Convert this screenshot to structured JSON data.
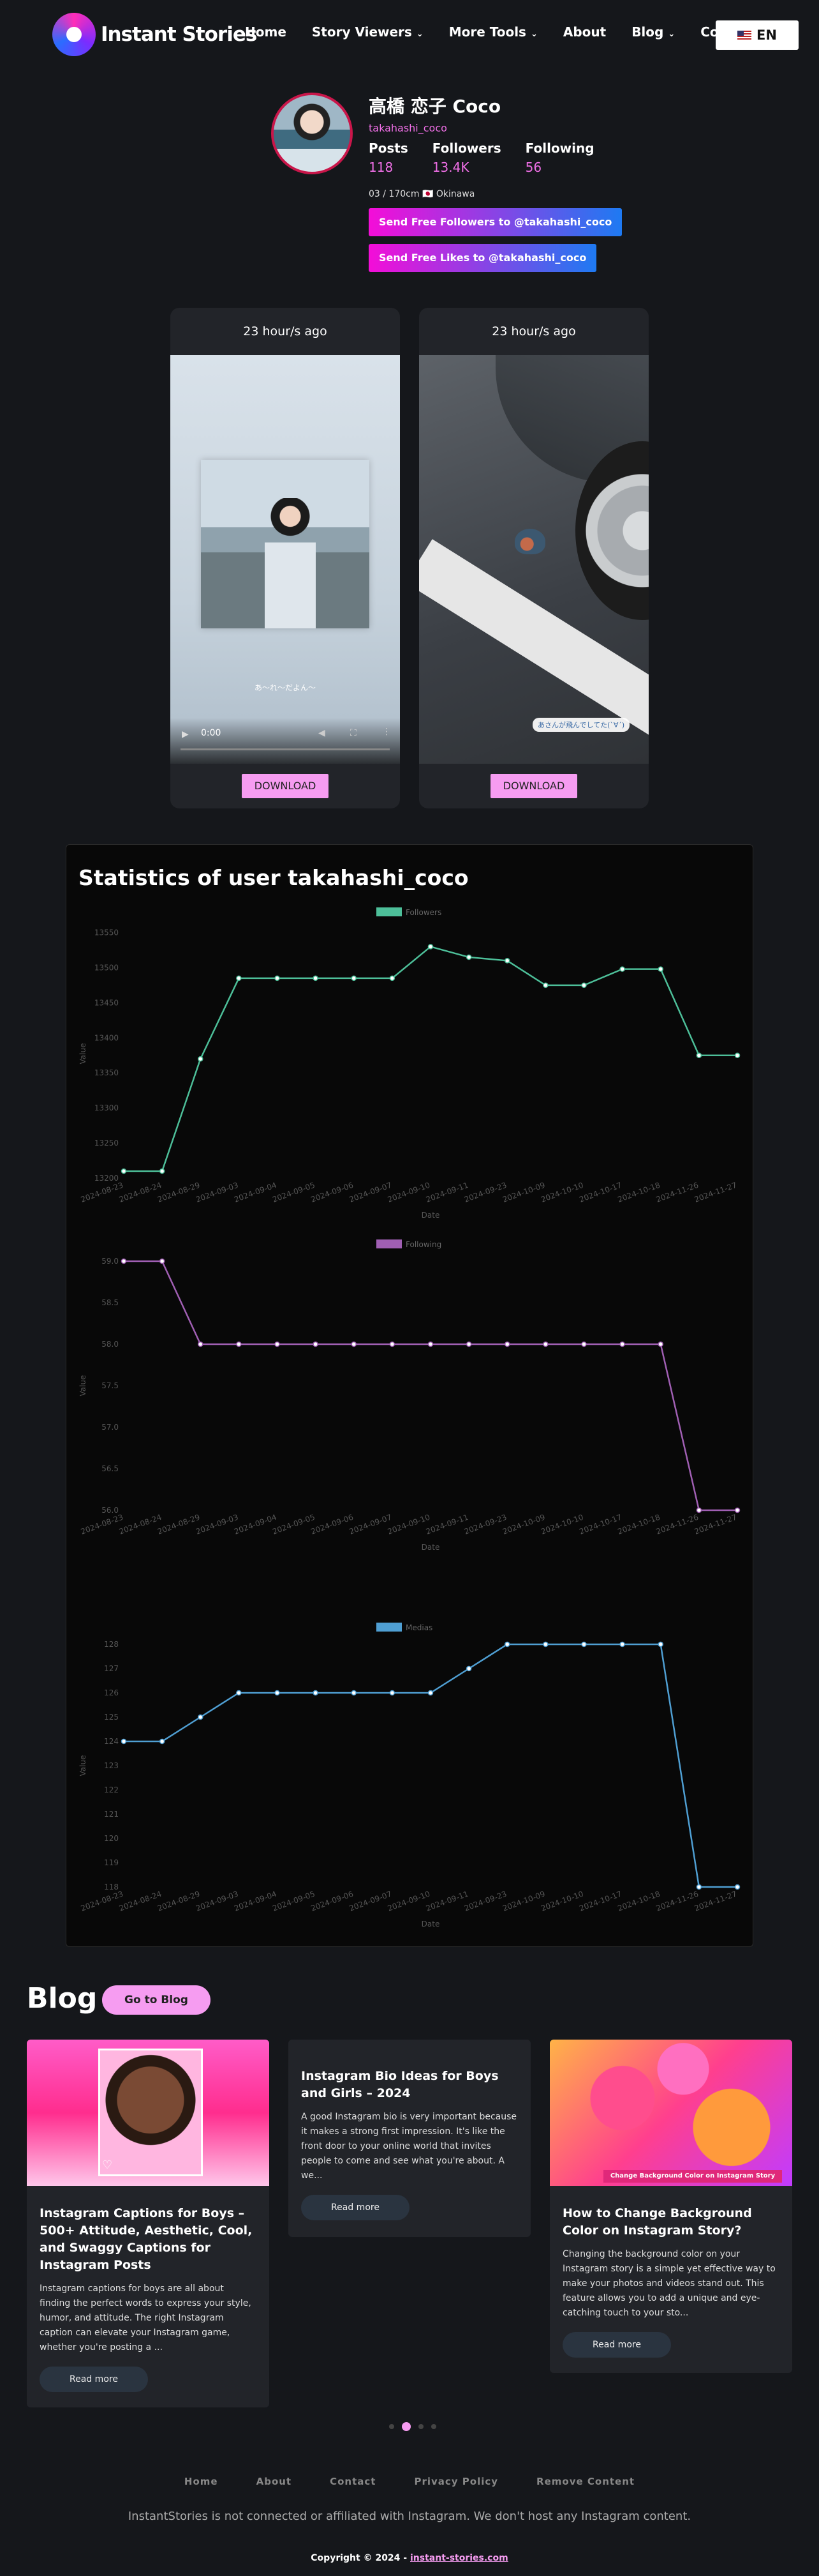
{
  "nav": {
    "brand": "Instant Stories",
    "items": [
      {
        "label": "Home"
      },
      {
        "label": "Story Viewers",
        "dropdown": true
      },
      {
        "label": "More Tools",
        "dropdown": true
      },
      {
        "label": "About"
      },
      {
        "label": "Blog",
        "dropdown": true
      },
      {
        "label": "Co"
      }
    ],
    "lang": "EN"
  },
  "profile": {
    "name": "高橋 恋子 Coco",
    "username": "takahashi_coco",
    "posts_label": "Posts",
    "posts": "118",
    "followers_label": "Followers",
    "followers": "13.4K",
    "following_label": "Following",
    "following": "56",
    "bio": "03 / 170cm 🇯🇵 Okinawa",
    "btn_followers": "Send Free Followers to @takahashi_coco",
    "btn_likes": "Send Free Likes to @takahashi_coco"
  },
  "stories": [
    {
      "time": "23 hour/s ago",
      "type": "video",
      "current_time": "0:00",
      "caption": "あ～れ〜だよん～",
      "download": "DOWNLOAD"
    },
    {
      "time": "23 hour/s ago",
      "type": "image",
      "caption": "あさんが飛んでしてた(`∀´)",
      "download": "DOWNLOAD"
    }
  ],
  "statistics": {
    "title": "Statistics of user takahashi_coco"
  },
  "chart_data": [
    {
      "type": "line",
      "series": [
        {
          "name": "Followers",
          "color": "#4dbf99"
        }
      ],
      "x": [
        "2024-08-23",
        "2024-08-24",
        "2024-08-29",
        "2024-09-03",
        "2024-09-04",
        "2024-09-05",
        "2024-09-06",
        "2024-09-07",
        "2024-09-10",
        "2024-09-11",
        "2024-09-23",
        "2024-10-09",
        "2024-10-10",
        "2024-10-17",
        "2024-10-18",
        "2024-11-26",
        "2024-11-27"
      ],
      "values": [
        13210,
        13210,
        13370,
        13485,
        13485,
        13485,
        13485,
        13485,
        13530,
        13515,
        13510,
        13475,
        13475,
        13498,
        13498,
        13375,
        13375
      ],
      "xlabel": "Date",
      "ylabel": "Value",
      "yticks": [
        13200,
        13250,
        13300,
        13350,
        13400,
        13450,
        13500,
        13550
      ],
      "ylim": [
        13200,
        13555
      ]
    },
    {
      "type": "line",
      "series": [
        {
          "name": "Following",
          "color": "#a05fb3"
        }
      ],
      "x": [
        "2024-08-23",
        "2024-08-24",
        "2024-08-29",
        "2024-09-03",
        "2024-09-04",
        "2024-09-05",
        "2024-09-06",
        "2024-09-07",
        "2024-09-10",
        "2024-09-11",
        "2024-09-23",
        "2024-10-09",
        "2024-10-10",
        "2024-10-17",
        "2024-10-18",
        "2024-11-26",
        "2024-11-27"
      ],
      "values": [
        59,
        59,
        58,
        58,
        58,
        58,
        58,
        58,
        58,
        58,
        58,
        58,
        58,
        58,
        58,
        56,
        56
      ],
      "xlabel": "Date",
      "ylabel": "Value",
      "yticks": [
        "56.0",
        "56.5",
        "57.0",
        "57.5",
        "58.0",
        "58.5",
        "59.0"
      ],
      "ylim": [
        56,
        59
      ]
    },
    {
      "type": "line",
      "series": [
        {
          "name": "Medias",
          "color": "#4f9fd3"
        }
      ],
      "x": [
        "2024-08-23",
        "2024-08-24",
        "2024-08-29",
        "2024-09-03",
        "2024-09-04",
        "2024-09-05",
        "2024-09-06",
        "2024-09-07",
        "2024-09-10",
        "2024-09-11",
        "2024-09-23",
        "2024-10-09",
        "2024-10-10",
        "2024-10-17",
        "2024-10-18",
        "2024-11-26",
        "2024-11-27"
      ],
      "values": [
        124,
        124,
        125,
        126,
        126,
        126,
        126,
        126,
        126,
        127,
        128,
        128,
        128,
        128,
        128,
        118,
        118
      ],
      "xlabel": "Date",
      "ylabel": "Value",
      "yticks": [
        118,
        119,
        120,
        121,
        122,
        123,
        124,
        125,
        126,
        127,
        128
      ],
      "ylim": [
        118,
        128
      ]
    }
  ],
  "blog": {
    "heading": "Blog",
    "go_button": "Go to Blog",
    "posts": [
      {
        "title": "Instagram Captions for Boys – 500+ Attitude, Aesthetic, Cool, and Swaggy Captions for Instagram Posts",
        "excerpt": "Instagram captions for boys are all about finding the perfect words to express your style, humor, and attitude. The right Instagram caption can elevate your Instagram game, whether you're posting a ...",
        "read_more": "Read more"
      },
      {
        "title": "Instagram Bio Ideas for Boys and Girls – 2024",
        "excerpt": "A good Instagram bio is very important because it makes a strong first impression. It's like the front door to your online world that invites people to come and see what you're about. A we...",
        "read_more": "Read more"
      },
      {
        "title": "How to Change Background Color on Instagram Story?",
        "excerpt": "Changing the background color on your Instagram story is a simple yet effective way to make your photos and videos stand out. This feature allows you to add a unique and eye-catching touch to your sto...",
        "read_more": "Read more",
        "image_text": "Change Background Color on Instagram Story"
      }
    ]
  },
  "footer": {
    "links": [
      {
        "label": "Home"
      },
      {
        "label": "About"
      },
      {
        "label": "Contact"
      },
      {
        "label": "Privacy Policy"
      },
      {
        "label": "Remove Content"
      }
    ],
    "disclaimer": "InstantStories is not connected or affiliated with Instagram. We don't host any Instagram content.",
    "copyright": "Copyright © 2024 - ",
    "site": "instant-stories.com"
  },
  "colors": {
    "accent": "#f69cf1",
    "pink": "#ef6fe6",
    "bg": "#15171b"
  }
}
